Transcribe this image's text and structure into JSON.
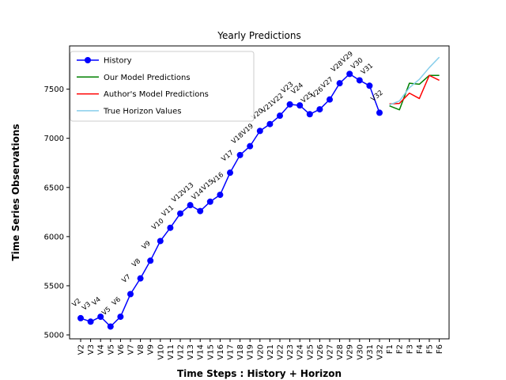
{
  "chart_data": {
    "type": "line",
    "title": "Yearly Predictions",
    "xlabel": "Time Steps : History + Horizon",
    "ylabel": "Time Series Observations",
    "ylim": [
      4960,
      7940
    ],
    "yticks": [
      5000,
      5500,
      6000,
      6500,
      7000,
      7500
    ],
    "grid": false,
    "legend_position": "top-left",
    "categories": [
      "V2",
      "V3",
      "V4",
      "V5",
      "V6",
      "V7",
      "V8",
      "V9",
      "V10",
      "V11",
      "V12",
      "V13",
      "V14",
      "V15",
      "V16",
      "V17",
      "V18",
      "V19",
      "V20",
      "V21",
      "V22",
      "V23",
      "V24",
      "V25",
      "V26",
      "V27",
      "V28",
      "V29",
      "V30",
      "V31",
      "V32",
      "F1",
      "F2",
      "F3",
      "F4",
      "F5",
      "F6"
    ],
    "series": [
      {
        "name": "History",
        "color": "#0000ff",
        "marker": "circle",
        "x": [
          "V2",
          "V3",
          "V4",
          "V5",
          "V6",
          "V7",
          "V8",
          "V9",
          "V10",
          "V11",
          "V12",
          "V13",
          "V14",
          "V15",
          "V16",
          "V17",
          "V18",
          "V19",
          "V20",
          "V21",
          "V22",
          "V23",
          "V24",
          "V25",
          "V26",
          "V27",
          "V28",
          "V29",
          "V30",
          "V31",
          "V32"
        ],
        "values": [
          5170,
          5135,
          5185,
          5085,
          5185,
          5415,
          5575,
          5755,
          5955,
          6090,
          6235,
          6320,
          6260,
          6355,
          6425,
          6650,
          6830,
          6920,
          7075,
          7145,
          7230,
          7345,
          7335,
          7245,
          7295,
          7395,
          7560,
          7655,
          7590,
          7535,
          7260
        ]
      },
      {
        "name": "Our Model Predictions",
        "color": "#008000",
        "x": [
          "F1",
          "F2",
          "F3",
          "F4",
          "F5",
          "F6"
        ],
        "values": [
          7330,
          7290,
          7560,
          7550,
          7640,
          7640
        ]
      },
      {
        "name": "Author's Model Predictions",
        "color": "#ff0000",
        "x": [
          "F1",
          "F2",
          "F3",
          "F4",
          "F5",
          "F6"
        ],
        "values": [
          7350,
          7355,
          7460,
          7405,
          7640,
          7590
        ]
      },
      {
        "name": "True Horizon Values",
        "color": "#87ceeb",
        "x": [
          "F1",
          "F2",
          "F3",
          "F4",
          "F5",
          "F6"
        ],
        "values": [
          7340,
          7380,
          7515,
          7600,
          7720,
          7825
        ]
      }
    ]
  }
}
